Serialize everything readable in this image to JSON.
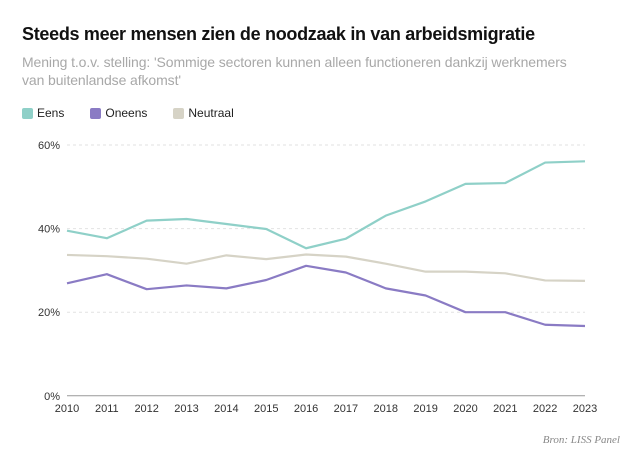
{
  "chart_data": {
    "type": "line",
    "title": "Steeds meer mensen zien de noodzaak in van arbeidsmigratie",
    "subtitle": "Mening t.o.v. stelling: 'Sommige sectoren kunnen alleen functioneren dankzij werknemers van buitenlandse afkomst'",
    "source": "Bron: LISS Panel",
    "x": [
      2010,
      2011,
      2012,
      2013,
      2014,
      2015,
      2016,
      2017,
      2018,
      2019,
      2020,
      2021,
      2022,
      2023
    ],
    "ylim": [
      0,
      60
    ],
    "yticks": [
      0,
      20,
      40,
      60
    ],
    "ytick_labels": [
      "0%",
      "20%",
      "40%",
      "60%"
    ],
    "grid": "horizontal dashed",
    "legend_position": "top-left",
    "series": [
      {
        "name": "Eens",
        "color": "#8fd0c8",
        "values": [
          39.5,
          37.7,
          41.9,
          42.3,
          41.1,
          39.9,
          35.3,
          37.6,
          43.1,
          46.5,
          50.7,
          50.9,
          55.8,
          56.1
        ]
      },
      {
        "name": "Oneens",
        "color": "#8a7bc4",
        "values": [
          26.9,
          29.1,
          25.5,
          26.4,
          25.7,
          27.7,
          31.1,
          29.5,
          25.7,
          24.0,
          20.0,
          20.0,
          17.0,
          16.7
        ]
      },
      {
        "name": "Neutraal",
        "color": "#d6d3c6",
        "values": [
          33.7,
          33.4,
          32.8,
          31.6,
          33.6,
          32.7,
          33.8,
          33.3,
          31.6,
          29.7,
          29.7,
          29.3,
          27.6,
          27.5
        ]
      }
    ]
  }
}
